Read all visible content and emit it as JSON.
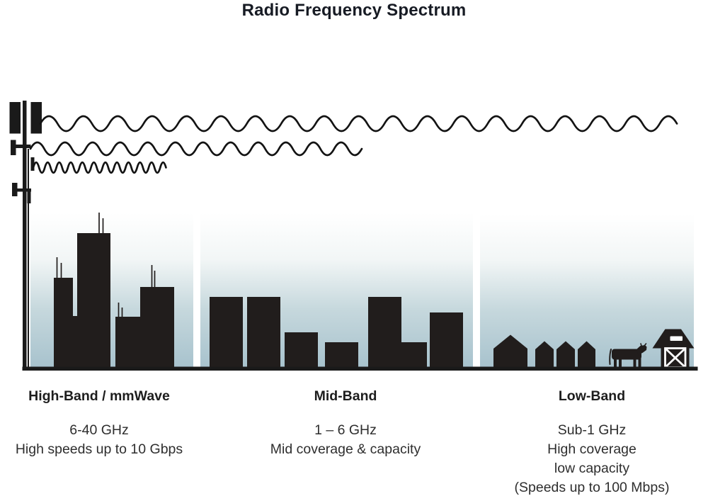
{
  "page": {
    "title": "Radio Frequency Spectrum"
  },
  "colors": {
    "heading_text": "#1d1d1d",
    "body_text": "#2e2e2e",
    "title_text": "#171b24",
    "silhouette": "#211d1c",
    "wave_stroke": "#131313",
    "sky_top": "#ffffff",
    "sky_bottom": "#a7c2cd"
  },
  "icons": {
    "cell-tower-icon": "antenna mast with panels",
    "radio-wave-long-icon": "long-wavelength sine wave (low band)",
    "radio-wave-medium-icon": "medium-wavelength sine wave (mid band)",
    "radio-wave-short-icon": "short-wavelength sine wave (high band)",
    "city-skyline-icon": "tall buildings with rooftop antennas",
    "building-icon": "mid-rise building block",
    "house-icon": "gabled house silhouette",
    "cow-icon": "cow silhouette",
    "barn-icon": "barn with hayloft and crossed door",
    "ground-line": "horizontal ground baseline"
  },
  "bands": [
    {
      "id": "high-band",
      "label": "High-Band / mmWave",
      "frequency": "6-40 GHz",
      "lines": [
        "High speeds up to 10 Gbps"
      ],
      "scene": "dense-urban-skyline",
      "wave": "short-wavelength-high-frequency"
    },
    {
      "id": "mid-band",
      "label": "Mid-Band",
      "frequency": "1 – 6 GHz",
      "lines": [
        "Mid coverage & capacity"
      ],
      "scene": "mid-rise-buildings",
      "wave": "medium-wavelength"
    },
    {
      "id": "low-band",
      "label": "Low-Band",
      "frequency": "Sub-1 GHz",
      "lines": [
        "High coverage",
        "low capacity",
        "(Speeds up to 100 Mbps)"
      ],
      "scene": "rural-houses-cow-barn",
      "wave": "long-wavelength-low-frequency"
    }
  ]
}
